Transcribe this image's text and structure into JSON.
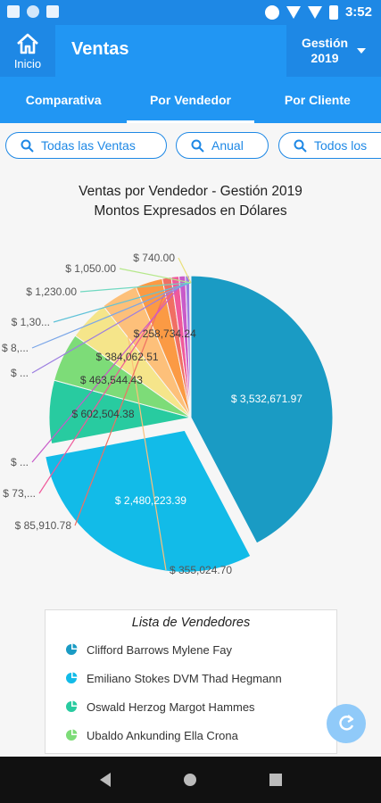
{
  "status_bar": {
    "time": "3:52"
  },
  "appbar": {
    "home_label": "Inicio",
    "title": "Ventas",
    "year_line1": "Gestión",
    "year_line2": "2019"
  },
  "tabs": [
    {
      "label": "Comparativa"
    },
    {
      "label": "Por Vendedor"
    },
    {
      "label": "Por Cliente"
    }
  ],
  "filters": [
    {
      "label": "Todas las Ventas"
    },
    {
      "label": "Anual"
    },
    {
      "label": "Todos los"
    }
  ],
  "chart_data": {
    "type": "pie",
    "title": "Ventas por Vendedor - Gestión 2019",
    "subtitle": "Montos Expresados en Dólares",
    "slices": [
      {
        "label": "$ 3,532,671.97",
        "value": 3532671.97,
        "color": "#1a9bc4"
      },
      {
        "label": "$ 2,480,223.39",
        "value": 2480223.39,
        "color": "#12bbe8"
      },
      {
        "label": "$ 602,504.38",
        "value": 602504.38,
        "color": "#28cba0"
      },
      {
        "label": "$ 463,544.43",
        "value": 463544.43,
        "color": "#7ddc78"
      },
      {
        "label": "$ 384,062.51",
        "value": 384062.51,
        "color": "#f5e58a"
      },
      {
        "label": "$ 355,024.70",
        "value": 355024.7,
        "color": "#fdc07a"
      },
      {
        "label": "$ 258,734.24",
        "value": 258734.24,
        "color": "#fb9a44"
      },
      {
        "label": "$ 85,910.78",
        "value": 85910.78,
        "color": "#f06f63"
      },
      {
        "label": "$ 73,...",
        "value": 73000,
        "color": "#f0599a"
      },
      {
        "label": "$ ...",
        "value": 60000,
        "color": "#c85bc9"
      },
      {
        "label": "$ ...",
        "value": 40000,
        "color": "#9b7de0"
      },
      {
        "label": "$ 8,...",
        "value": 8000,
        "color": "#7aa6e8"
      },
      {
        "label": "$ 1,30...",
        "value": 1300,
        "color": "#5fc2d8"
      },
      {
        "label": "$ 1,230.00",
        "value": 1230,
        "color": "#6fd8c0"
      },
      {
        "label": "$ 1,050.00",
        "value": 1050,
        "color": "#b5e88a"
      },
      {
        "label": "$ 740.00",
        "value": 740,
        "color": "#e8e07a"
      }
    ]
  },
  "legend": {
    "title": "Lista de Vendedores",
    "items": [
      {
        "name": "Clifford Barrows Mylene Fay",
        "color": "#1a9bc4"
      },
      {
        "name": "Emiliano Stokes DVM Thad Hegmann",
        "color": "#12bbe8"
      },
      {
        "name": "Oswald Herzog Margot Hammes",
        "color": "#28cba0"
      },
      {
        "name": "Ubaldo Ankunding Ella Crona",
        "color": "#7ddc78"
      }
    ]
  }
}
